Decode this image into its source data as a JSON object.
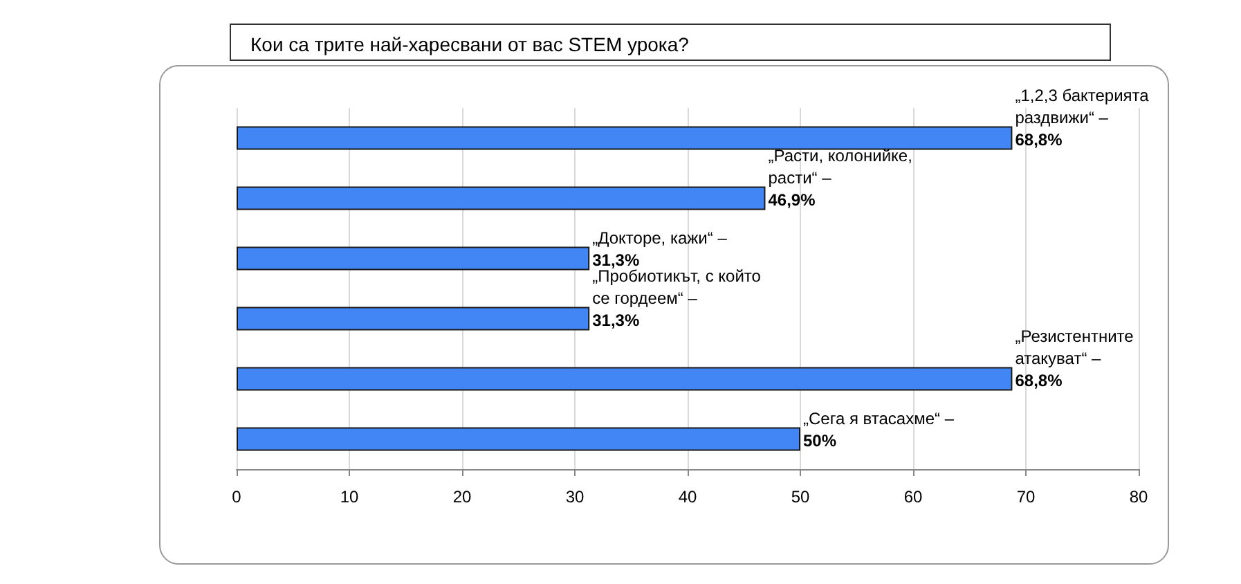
{
  "chart_data": {
    "type": "bar",
    "orientation": "horizontal",
    "title": "Кои са трите най-харесвани от вас STEM урока?",
    "categories": [
      "„1,2,3 бактерията раздвижи“ –",
      "„Расти, колонийке, расти“ –",
      "„Докторе, кажи“ –",
      "„Пробиотикът, с който се гордеем“ –",
      "„Резистентните атакуват“ –",
      "„Сега я втасахме“ –"
    ],
    "values": [
      68.8,
      46.9,
      31.3,
      31.3,
      68.8,
      50
    ],
    "value_labels": [
      "68,8%",
      "46,9%",
      "31,3%",
      "31,3%",
      "68,8%",
      "50%"
    ],
    "color": "#4285f4",
    "xlim": [
      0,
      80
    ],
    "xticks": [
      0,
      10,
      20,
      30,
      40,
      50,
      60,
      70,
      80
    ],
    "grid": "x",
    "tick_labels": "x"
  }
}
